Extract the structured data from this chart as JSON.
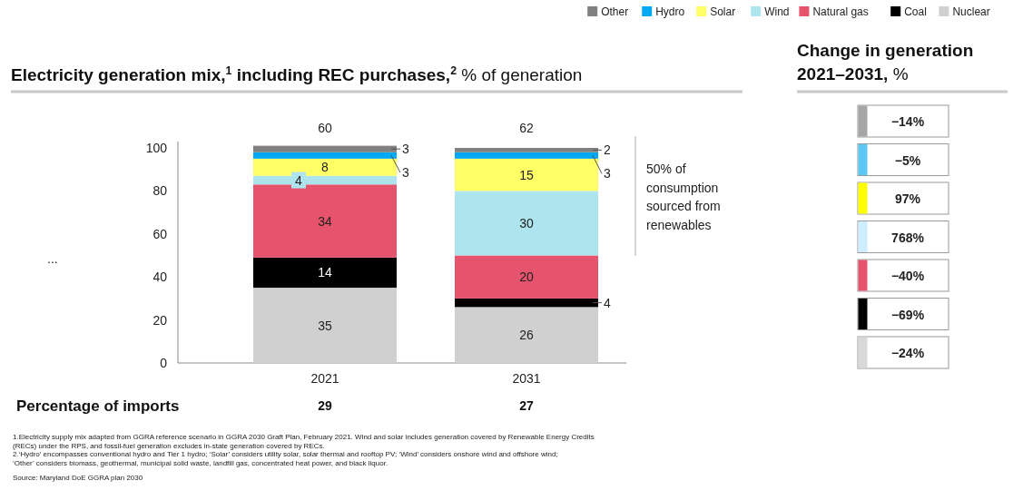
{
  "chart_data": [
    {
      "type": "bar",
      "stacked": true,
      "title": "Electricity generation mix,$^{1}$ including REC purchases,$^{2}$",
      "subtitle": "% of generation",
      "categories": [
        "2021",
        "2031"
      ],
      "series": [
        {
          "name": "Nuclear",
          "color": "#d0d0d0",
          "values": [
            35,
            26
          ]
        },
        {
          "name": "Coal",
          "color": "#000000",
          "values": [
            14,
            4
          ]
        },
        {
          "name": "Natural gas",
          "color": "#e5546c",
          "values": [
            34,
            20
          ]
        },
        {
          "name": "Wind",
          "color": "#aee4ee",
          "values": [
            4,
            30
          ]
        },
        {
          "name": "Solar",
          "color": "#ffff66",
          "values": [
            8,
            15
          ]
        },
        {
          "name": "Hydro",
          "color": "#00a9f4",
          "values": [
            3,
            3
          ]
        },
        {
          "name": "Other",
          "color": "#808080",
          "values": [
            3,
            2
          ]
        }
      ],
      "ylim": [
        0,
        103
      ],
      "yticks": [
        0,
        20,
        40,
        60,
        80,
        100
      ],
      "data_labels": true,
      "legend": "top right",
      "annotations": [
        "60",
        "62",
        "...",
        "50% of consumption sourced from renewables",
        "Percentage of imports",
        "29",
        "27",
        "1.Electricity supply mix adapted from GGRA reference scenario in GGRA 2030 Graft Plan, February 2021. Wind and solar includes generation covered by Renewable Energy Credits (RECs) under the RPS, and fossil-fuel generation excludes in-state generation covered by RECs.",
        "2.‘Hydro’ encompasses conventional hydro and Tier 1 hydro; ‘Solar’ considers utility solar, solar thermal and rooftop PV; ‘Wind’ considers onshore wind and offshore wind; ‘Other’ considers biomass, geothermal, municipal solid waste, landfill gas, concentrated heat power, and black liquor.",
        "Source: Maryland DoE GGRA plan 2030"
      ]
    },
    {
      "type": "other",
      "title": "Change in generation 2021–2031,",
      "subtitle": "%",
      "annotations": [
        "−14%",
        "−5%",
        "97%",
        "768%",
        "−40%",
        "−69%",
        "−24%"
      ],
      "colors": [
        "#a6a6a6",
        "#5bc8f5",
        "#ffff00",
        "#cceeff",
        "#e5546c",
        "#000000",
        "#d9d9d9"
      ]
    }
  ]
}
